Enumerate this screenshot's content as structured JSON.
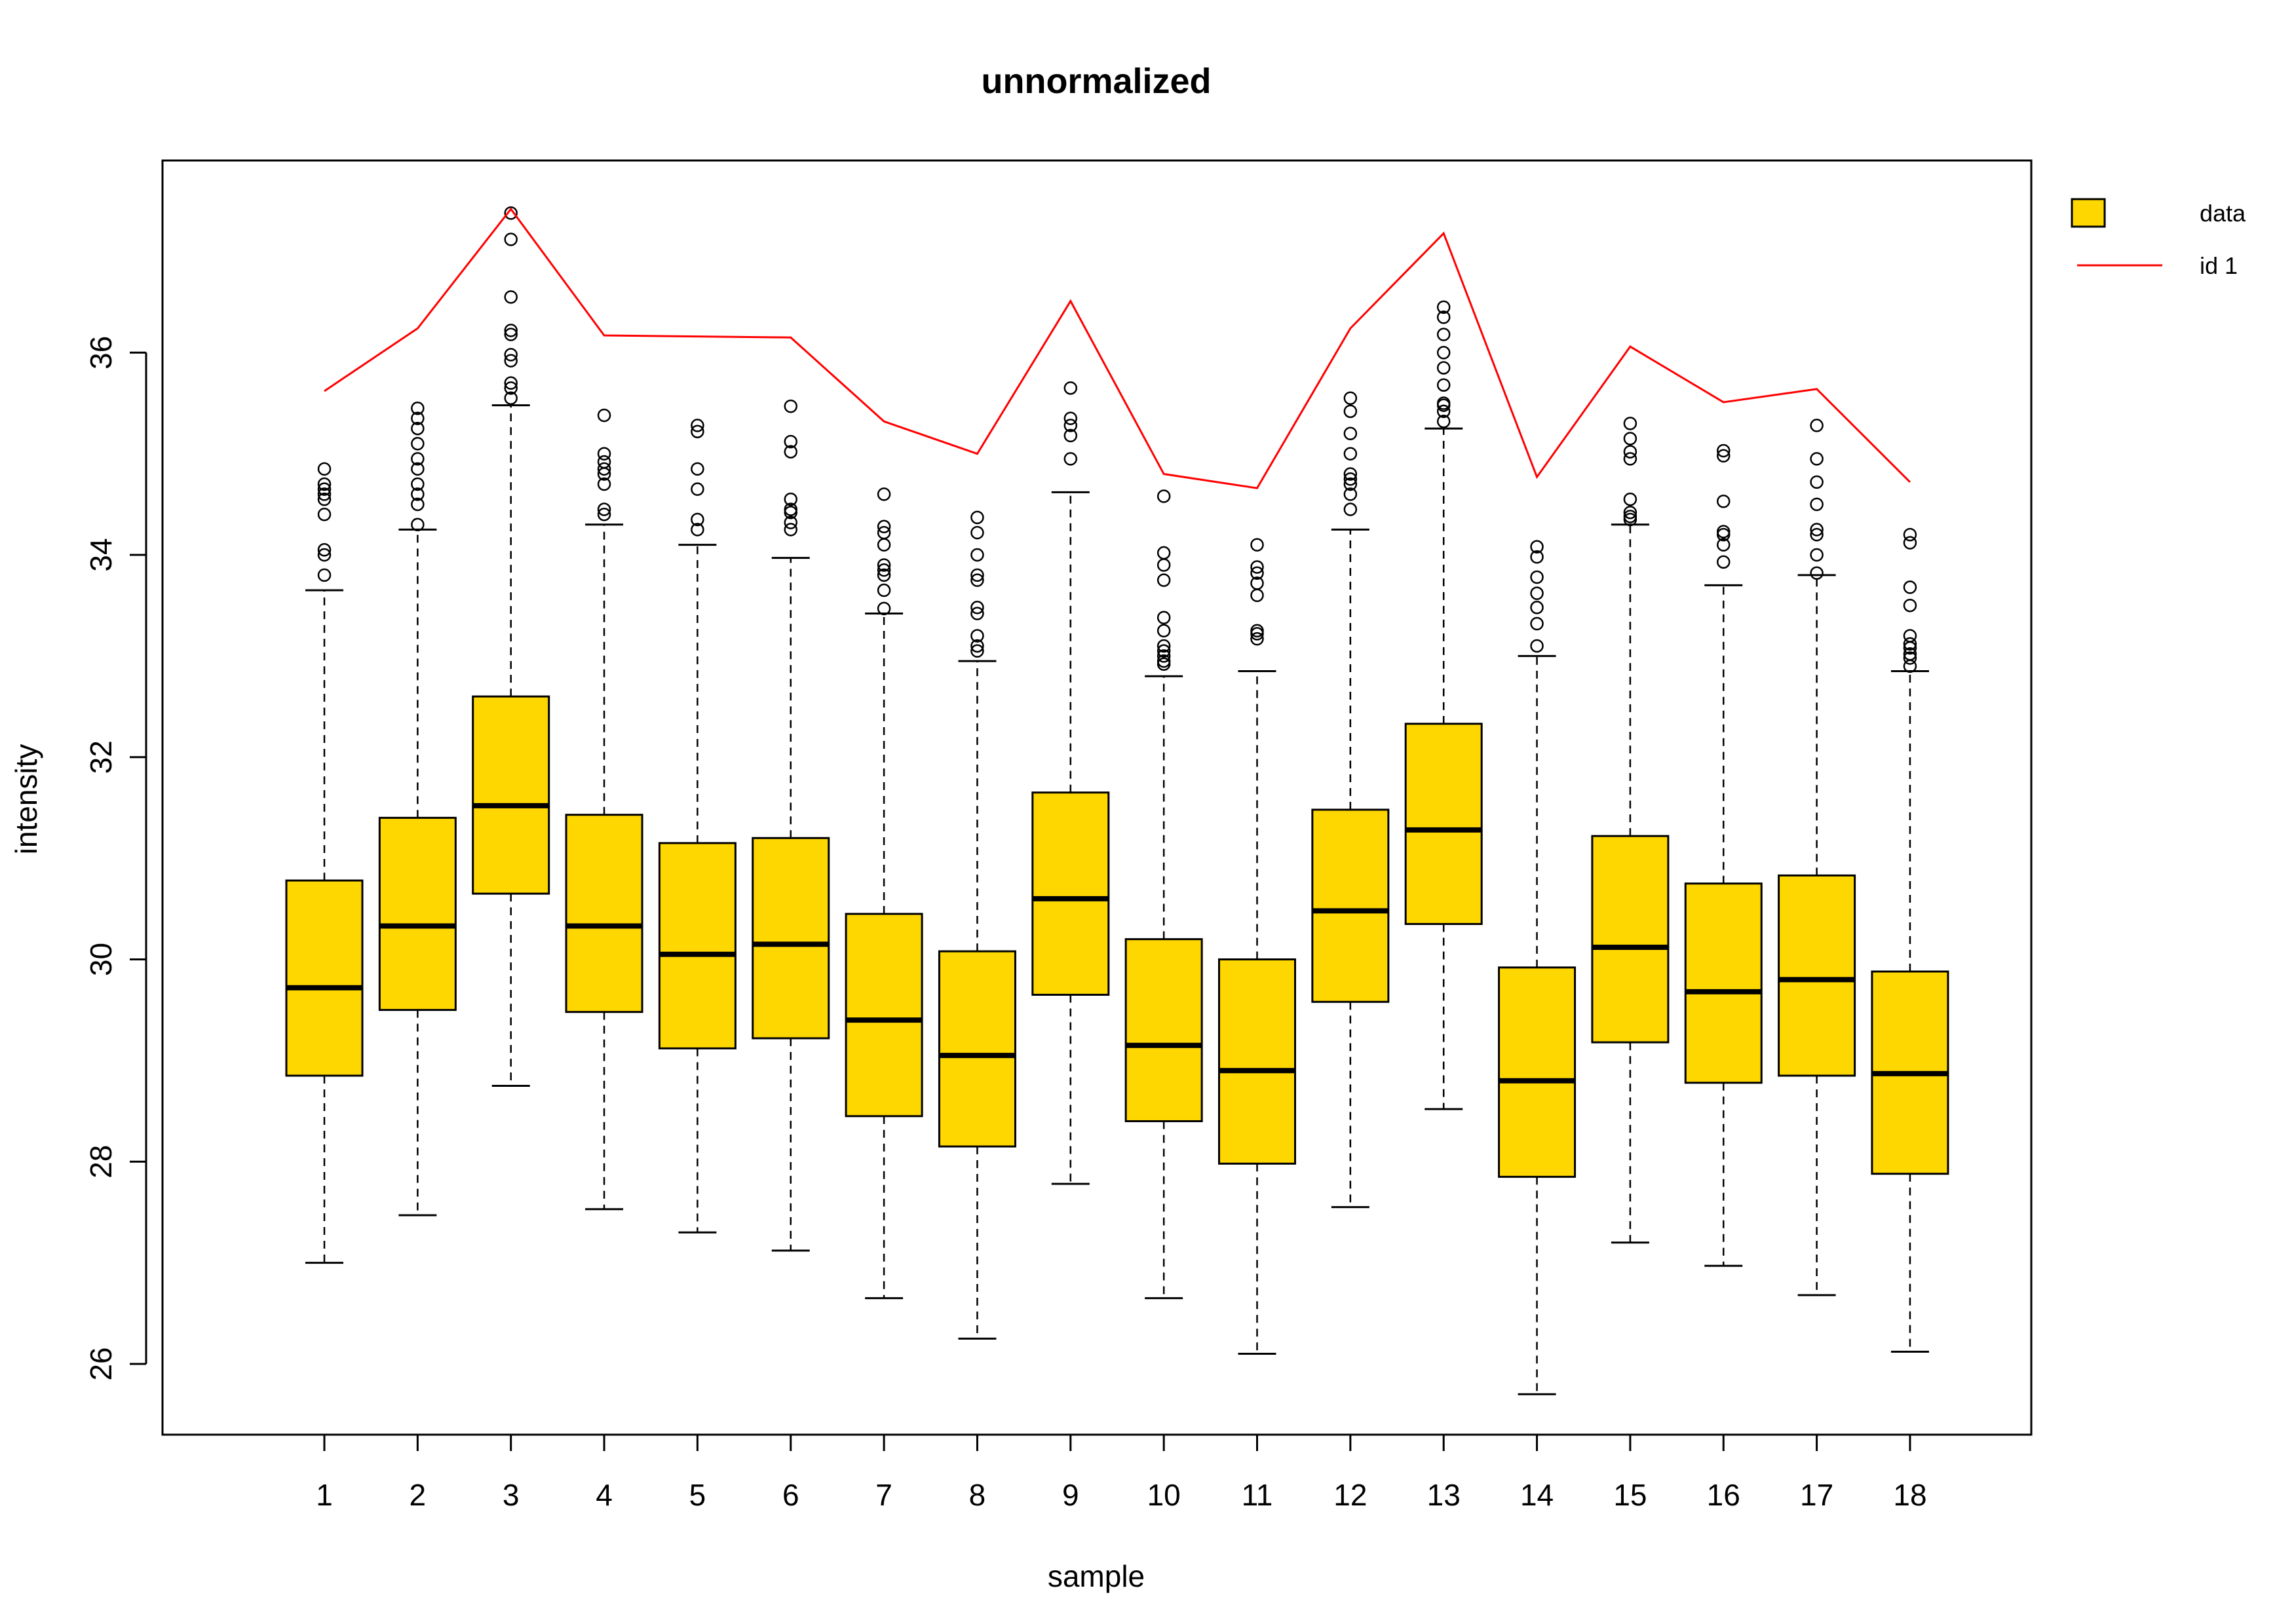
{
  "chart_data": {
    "type": "boxplot",
    "title": "unnormalized",
    "xlabel": "sample",
    "ylabel": "intensity",
    "ylim": [
      25.3,
      37.9
    ],
    "yticks": [
      26,
      28,
      30,
      32,
      34,
      36
    ],
    "categories": [
      "1",
      "2",
      "3",
      "4",
      "5",
      "6",
      "7",
      "8",
      "9",
      "10",
      "11",
      "12",
      "13",
      "14",
      "15",
      "16",
      "17",
      "18"
    ],
    "box_fill": "#FFD700",
    "line_color": "#FF0000",
    "legend": {
      "placement": "top-right (outside plot)",
      "entries": [
        {
          "label": "data",
          "kind": "box",
          "color": "#FFD700"
        },
        {
          "label": "id 1",
          "kind": "line",
          "color": "#FF0000"
        }
      ]
    },
    "boxes": [
      {
        "sample": "1",
        "whisker_low": 27.0,
        "q1": 28.85,
        "median": 29.72,
        "q3": 30.78,
        "whisker_high": 33.65,
        "outliers": [
          33.8,
          34.0,
          34.05,
          34.4,
          34.55,
          34.6,
          34.65,
          34.7,
          34.85
        ]
      },
      {
        "sample": "2",
        "whisker_low": 27.47,
        "q1": 29.5,
        "median": 30.33,
        "q3": 31.4,
        "whisker_high": 34.25,
        "outliers": [
          34.3,
          34.5,
          34.6,
          34.7,
          34.85,
          34.95,
          35.1,
          35.25,
          35.35,
          35.45
        ]
      },
      {
        "sample": "3",
        "whisker_low": 28.75,
        "q1": 30.65,
        "median": 31.52,
        "q3": 32.6,
        "whisker_high": 35.48,
        "outliers": [
          35.55,
          35.65,
          35.7,
          35.92,
          35.98,
          36.18,
          36.22,
          36.55,
          37.12,
          37.38
        ]
      },
      {
        "sample": "4",
        "whisker_low": 27.53,
        "q1": 29.48,
        "median": 30.33,
        "q3": 31.43,
        "whisker_high": 34.3,
        "outliers": [
          34.4,
          34.45,
          34.7,
          34.8,
          34.85,
          34.92,
          35.0,
          35.38
        ]
      },
      {
        "sample": "5",
        "whisker_low": 27.3,
        "q1": 29.12,
        "median": 30.05,
        "q3": 31.15,
        "whisker_high": 34.1,
        "outliers": [
          34.25,
          34.35,
          34.65,
          34.85,
          35.22,
          35.28
        ]
      },
      {
        "sample": "6",
        "whisker_low": 27.12,
        "q1": 29.22,
        "median": 30.15,
        "q3": 31.2,
        "whisker_high": 33.97,
        "outliers": [
          34.25,
          34.32,
          34.42,
          34.45,
          34.55,
          35.02,
          35.12,
          35.47
        ]
      },
      {
        "sample": "7",
        "whisker_low": 26.65,
        "q1": 28.45,
        "median": 29.4,
        "q3": 30.45,
        "whisker_high": 33.42,
        "outliers": [
          33.47,
          33.65,
          33.8,
          33.85,
          33.9,
          34.1,
          34.22,
          34.28,
          34.6
        ]
      },
      {
        "sample": "8",
        "whisker_low": 26.25,
        "q1": 28.15,
        "median": 29.05,
        "q3": 30.08,
        "whisker_high": 32.95,
        "outliers": [
          33.05,
          33.1,
          33.2,
          33.42,
          33.48,
          33.75,
          33.8,
          34.0,
          34.22,
          34.37
        ]
      },
      {
        "sample": "9",
        "whisker_low": 27.78,
        "q1": 29.65,
        "median": 30.6,
        "q3": 31.65,
        "whisker_high": 34.62,
        "outliers": [
          34.95,
          35.18,
          35.28,
          35.35,
          35.65
        ]
      },
      {
        "sample": "10",
        "whisker_low": 26.65,
        "q1": 28.4,
        "median": 29.15,
        "q3": 30.2,
        "whisker_high": 32.8,
        "outliers": [
          32.92,
          32.95,
          33.0,
          33.05,
          33.1,
          33.25,
          33.38,
          33.75,
          33.9,
          34.02,
          34.58
        ]
      },
      {
        "sample": "11",
        "whisker_low": 26.1,
        "q1": 27.98,
        "median": 28.9,
        "q3": 30.0,
        "whisker_high": 32.85,
        "outliers": [
          33.17,
          33.22,
          33.25,
          33.6,
          33.72,
          33.82,
          33.88,
          34.1
        ]
      },
      {
        "sample": "12",
        "whisker_low": 27.55,
        "q1": 29.58,
        "median": 30.48,
        "q3": 31.48,
        "whisker_high": 34.25,
        "outliers": [
          34.45,
          34.6,
          34.7,
          34.75,
          34.8,
          35.0,
          35.2,
          35.42,
          35.55
        ]
      },
      {
        "sample": "13",
        "whisker_low": 28.52,
        "q1": 30.35,
        "median": 31.28,
        "q3": 32.33,
        "whisker_high": 35.25,
        "outliers": [
          35.32,
          35.42,
          35.48,
          35.5,
          35.68,
          35.85,
          36.0,
          36.18,
          36.35,
          36.45
        ]
      },
      {
        "sample": "14",
        "whisker_low": 25.7,
        "q1": 27.85,
        "median": 28.8,
        "q3": 29.92,
        "whisker_high": 33.0,
        "outliers": [
          33.1,
          33.32,
          33.48,
          33.62,
          33.78,
          33.98,
          34.08
        ]
      },
      {
        "sample": "15",
        "whisker_low": 27.2,
        "q1": 29.18,
        "median": 30.12,
        "q3": 31.22,
        "whisker_high": 34.3,
        "outliers": [
          34.35,
          34.38,
          34.42,
          34.55,
          34.95,
          35.02,
          35.15,
          35.3
        ]
      },
      {
        "sample": "16",
        "whisker_low": 26.97,
        "q1": 28.78,
        "median": 29.68,
        "q3": 30.75,
        "whisker_high": 33.7,
        "outliers": [
          33.93,
          34.1,
          34.2,
          34.23,
          34.53,
          34.98,
          35.03
        ]
      },
      {
        "sample": "17",
        "whisker_low": 26.68,
        "q1": 28.85,
        "median": 29.8,
        "q3": 30.83,
        "whisker_high": 33.8,
        "outliers": [
          33.82,
          34.0,
          34.2,
          34.25,
          34.5,
          34.72,
          34.95,
          35.28
        ]
      },
      {
        "sample": "18",
        "whisker_low": 26.12,
        "q1": 27.88,
        "median": 28.87,
        "q3": 29.88,
        "whisker_high": 32.85,
        "outliers": [
          32.9,
          32.98,
          33.02,
          33.08,
          33.12,
          33.2,
          33.5,
          33.68,
          34.12,
          34.2
        ]
      }
    ],
    "series": [
      {
        "name": "id 1",
        "values": [
          35.62,
          36.24,
          37.42,
          36.17,
          36.16,
          36.15,
          35.32,
          35.0,
          36.51,
          34.8,
          34.66,
          36.24,
          37.18,
          34.77,
          36.06,
          35.51,
          35.64,
          34.72
        ]
      }
    ]
  }
}
